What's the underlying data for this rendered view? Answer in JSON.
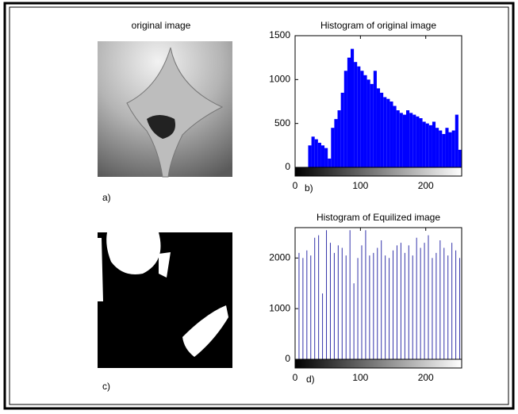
{
  "panels": {
    "original_title": "original image",
    "a_label": "a)",
    "b_label": "b)",
    "c_label": "c)",
    "d_label": "d)"
  },
  "chart_data": [
    {
      "type": "histogram",
      "title": "Histogram of original image",
      "color": "#0000ff",
      "bins": [
        0,
        5,
        10,
        15,
        20,
        25,
        30,
        35,
        40,
        45,
        50,
        55,
        60,
        65,
        70,
        75,
        80,
        85,
        90,
        95,
        100,
        105,
        110,
        115,
        120,
        125,
        130,
        135,
        140,
        145,
        150,
        155,
        160,
        165,
        170,
        175,
        180,
        185,
        190,
        195,
        200,
        205,
        210,
        215,
        220,
        225,
        230,
        235,
        240,
        245,
        250,
        255
      ],
      "values": [
        0,
        0,
        0,
        0,
        250,
        350,
        320,
        280,
        250,
        220,
        100,
        450,
        550,
        650,
        850,
        1100,
        1250,
        1350,
        1200,
        1150,
        1100,
        1050,
        1000,
        950,
        1100,
        900,
        850,
        800,
        780,
        750,
        700,
        650,
        620,
        600,
        650,
        620,
        600,
        580,
        560,
        520,
        500,
        480,
        520,
        450,
        420,
        380,
        450,
        400,
        420,
        600,
        200
      ],
      "xlim": [
        0,
        255
      ],
      "xticks": [
        0,
        100,
        200
      ],
      "ylim": [
        0,
        1500
      ],
      "yticks": [
        0,
        500,
        1000,
        1500
      ]
    },
    {
      "type": "stem",
      "title": "Histogram of Equilized image",
      "color": "#3333aa",
      "x": [
        0,
        6,
        12,
        18,
        24,
        30,
        36,
        42,
        48,
        54,
        60,
        66,
        72,
        78,
        84,
        90,
        96,
        102,
        108,
        114,
        120,
        126,
        132,
        138,
        144,
        150,
        156,
        162,
        168,
        174,
        180,
        186,
        192,
        198,
        204,
        210,
        216,
        222,
        228,
        234,
        240,
        246,
        252
      ],
      "values": [
        2050,
        2100,
        2000,
        2150,
        2050,
        2400,
        2450,
        1300,
        2550,
        2300,
        2100,
        2250,
        2200,
        2050,
        2550,
        1500,
        2000,
        2250,
        2550,
        2050,
        2100,
        2200,
        2350,
        2050,
        2000,
        2150,
        2250,
        2300,
        2100,
        2250,
        2050,
        2400,
        2200,
        2300,
        2450,
        2000,
        2100,
        2350,
        2200,
        2050,
        2300,
        2150,
        2000
      ],
      "xlim": [
        0,
        255
      ],
      "xticks": [
        0,
        100,
        200
      ],
      "ylim": [
        0,
        2600
      ],
      "yticks": [
        0,
        1000,
        2000
      ]
    }
  ]
}
